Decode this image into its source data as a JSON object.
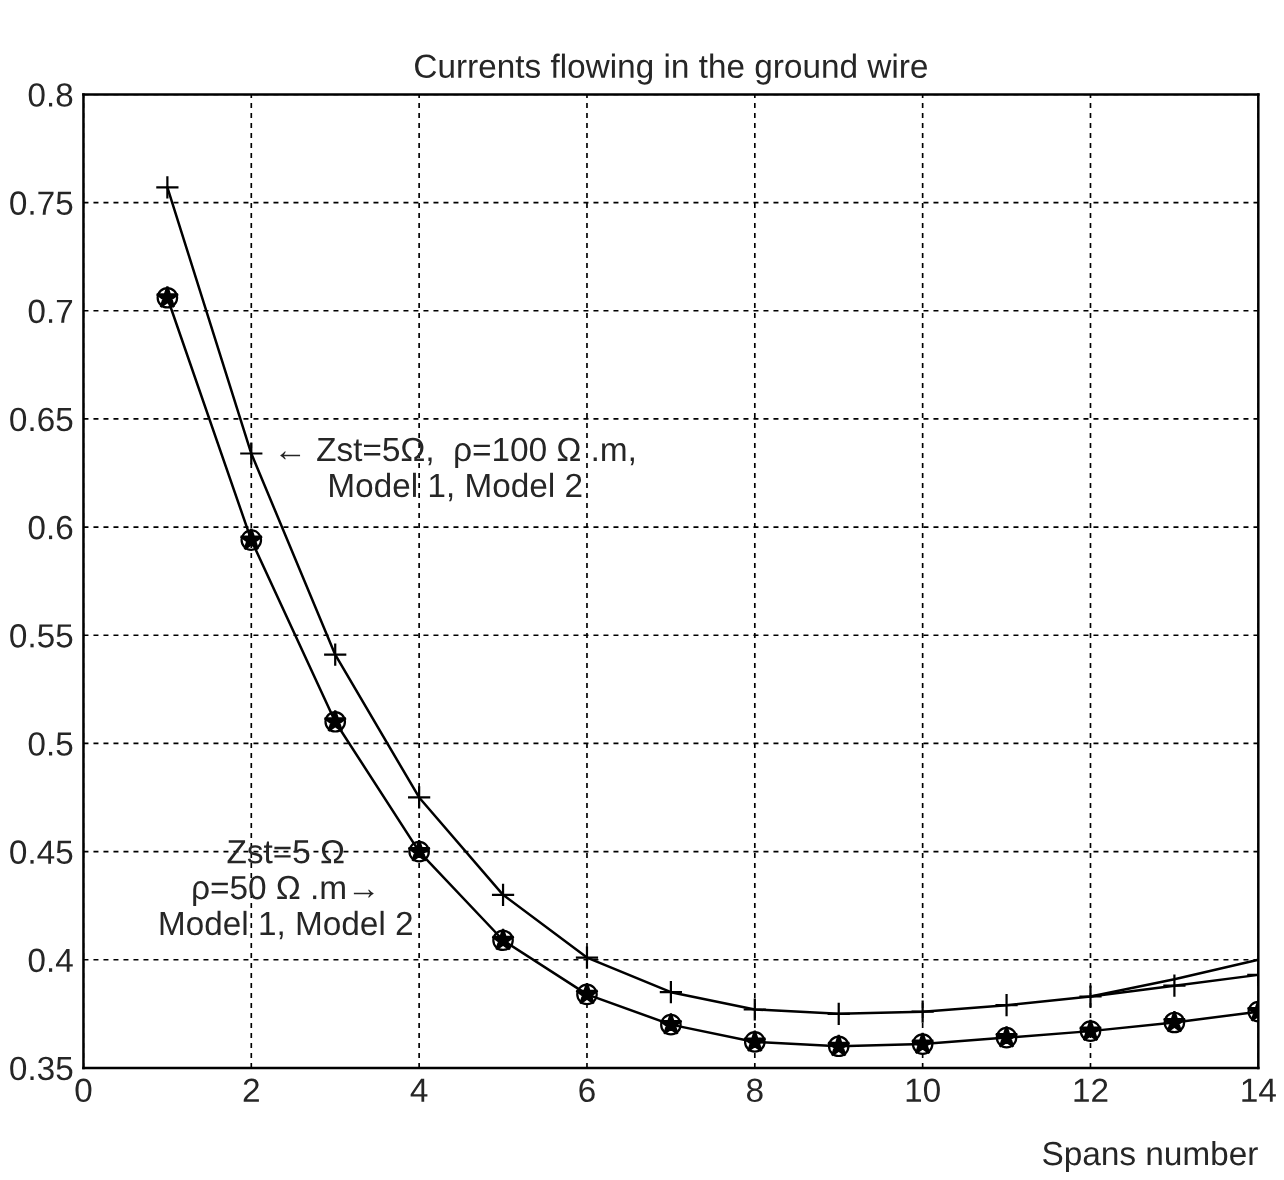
{
  "chart_data": {
    "type": "line",
    "title": "Currents flowing in the ground wire",
    "xlabel": "Spans number",
    "x": [
      1,
      2,
      3,
      4,
      5,
      6,
      7,
      8,
      9,
      10,
      11,
      12,
      13,
      14
    ],
    "series": [
      {
        "color": "#000000",
        "marker": "cross",
        "values": [
          0.757,
          0.634,
          0.541,
          0.475,
          0.43,
          0.401,
          0.385,
          0.377,
          0.375,
          0.376,
          0.379,
          0.383,
          0.388,
          0.393
        ]
      },
      {
        "color": "#000000",
        "marker": "none",
        "x": [
          12,
          13,
          14
        ],
        "values": [
          0.383,
          0.391,
          0.4
        ]
      },
      {
        "type": "scatter",
        "color": "#000000",
        "marker": "star",
        "values": [
          0.706,
          0.594,
          0.51,
          0.45,
          0.409,
          0.384,
          0.37,
          0.362,
          0.36,
          0.361,
          0.364,
          0.367,
          0.371,
          0.376
        ]
      },
      {
        "color": "#000000",
        "marker": "circle",
        "values": [
          0.706,
          0.594,
          0.51,
          0.45,
          0.409,
          0.384,
          0.37,
          0.362,
          0.36,
          0.361,
          0.364,
          0.367,
          0.371,
          0.376
        ]
      }
    ],
    "annotations": [
      {
        "text": "← Zst=5Ω,  ρ=100 Ω .m,\nModel 1, Model 2",
        "x": 2,
        "y": 0.634
      },
      {
        "text": "Zst=5 Ω\nρ=50 Ω .m→\nModel 1, Model 2",
        "x": 4,
        "y": 0.45
      }
    ],
    "xlim": [
      0,
      14
    ],
    "xticks": [
      0,
      2,
      4,
      6,
      8,
      10,
      12,
      14
    ],
    "ylim": [
      0.35,
      0.8
    ],
    "yticks": [
      0.35,
      0.4,
      0.45,
      0.5,
      0.55,
      0.6,
      0.65,
      0.7,
      0.75,
      0.8
    ],
    "grid": true,
    "line_style": "solid"
  }
}
